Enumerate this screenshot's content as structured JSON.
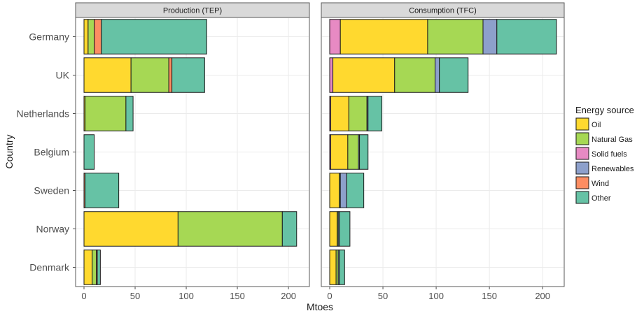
{
  "chart_data": {
    "type": "bar",
    "orientation": "horizontal",
    "stacked": true,
    "title": "",
    "xlabel": "Mtoes",
    "ylabel": "Country",
    "xlim": [
      0,
      215
    ],
    "x_ticks": [
      0,
      50,
      100,
      150,
      200
    ],
    "categories": [
      "Germany",
      "UK",
      "Netherlands",
      "Belgium",
      "Sweden",
      "Norway",
      "Denmark"
    ],
    "legend": {
      "title": "Energy source",
      "items": [
        {
          "name": "Oil",
          "color": "#FFD92F"
        },
        {
          "name": "Natural Gas",
          "color": "#A6D854"
        },
        {
          "name": "Solid fuels",
          "color": "#E78AC3"
        },
        {
          "name": "Renewables",
          "color": "#8DA0CB"
        },
        {
          "name": "Wind",
          "color": "#FC8D62"
        },
        {
          "name": "Other",
          "color": "#66C2A5"
        }
      ]
    },
    "panels": [
      {
        "title": "Production (TEP)",
        "series": [
          {
            "name": "Oil",
            "values": [
              4,
              46,
              1,
              0,
              0,
              92,
              8
            ]
          },
          {
            "name": "Natural Gas",
            "values": [
              6,
              37,
              40,
              0,
              0,
              102,
              4
            ]
          },
          {
            "name": "Solid fuels",
            "values": [
              0,
              0,
              0,
              0,
              0,
              0,
              0
            ]
          },
          {
            "name": "Renewables",
            "values": [
              0,
              0,
              0,
              0,
              0,
              0,
              0
            ]
          },
          {
            "name": "Wind",
            "values": [
              7,
              3,
              0,
              0,
              1,
              0,
              1
            ]
          },
          {
            "name": "Other",
            "values": [
              103,
              32,
              7,
              10,
              33,
              14,
              3
            ]
          }
        ]
      },
      {
        "title": "Consumption (TFC)",
        "series": [
          {
            "name": "Oil",
            "values": [
              82,
              58,
              17,
              16,
              9,
              7,
              6
            ]
          },
          {
            "name": "Natural Gas",
            "values": [
              52,
              38,
              17,
              10,
              1,
              1,
              2
            ]
          },
          {
            "name": "Solid fuels",
            "values": [
              10,
              3,
              1,
              1,
              0,
              0,
              0
            ]
          },
          {
            "name": "Renewables",
            "values": [
              13,
              4,
              1,
              1,
              6,
              1,
              1
            ]
          },
          {
            "name": "Wind",
            "values": [
              0,
              0,
              0,
              0,
              0,
              0,
              0
            ]
          },
          {
            "name": "Other",
            "values": [
              56,
              27,
              13,
              8,
              16,
              10,
              5
            ]
          }
        ]
      }
    ],
    "stack_order": [
      "Solid fuels",
      "Oil",
      "Natural Gas",
      "Renewables",
      "Wind",
      "Other"
    ]
  }
}
